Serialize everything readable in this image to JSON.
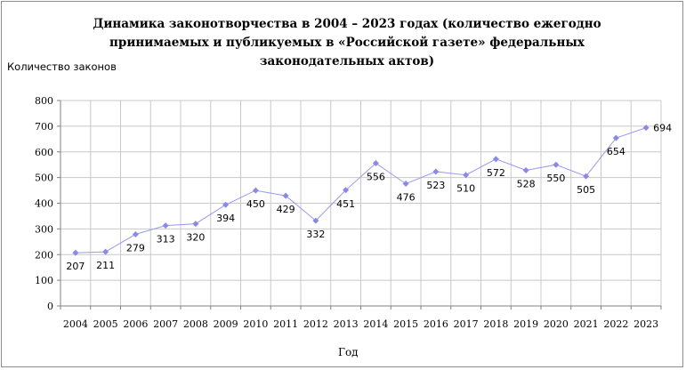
{
  "chart_data": {
    "type": "line",
    "title": "Динамика законотворчества в 2004 – 2023 годах (количество ежегодно принимаемых и публикуемых в «Российской газете» федеральных законодательных актов)",
    "title_lines": [
      "Динамика законотворчества в 2004 – 2023 годах (количество ежегодно",
      "принимаемых и публикуемых в «Российской газете» федеральных",
      "законодательных актов)"
    ],
    "ylabel": "Количество законов",
    "xlabel": "Год",
    "ylim": [
      0,
      800
    ],
    "yticks": [
      0,
      100,
      200,
      300,
      400,
      500,
      600,
      700,
      800
    ],
    "grid": true,
    "legend": "none",
    "line_color": "#9999ee",
    "marker_color": "#8a8ae6",
    "categories": [
      "2004",
      "2005",
      "2006",
      "2007",
      "2008",
      "2009",
      "2010",
      "2011",
      "2012",
      "2013",
      "2014",
      "2015",
      "2016",
      "2017",
      "2018",
      "2019",
      "2020",
      "2021",
      "2022",
      "2023"
    ],
    "values": [
      207,
      211,
      279,
      313,
      320,
      394,
      450,
      429,
      332,
      451,
      556,
      476,
      523,
      510,
      572,
      528,
      550,
      505,
      654,
      694
    ]
  }
}
